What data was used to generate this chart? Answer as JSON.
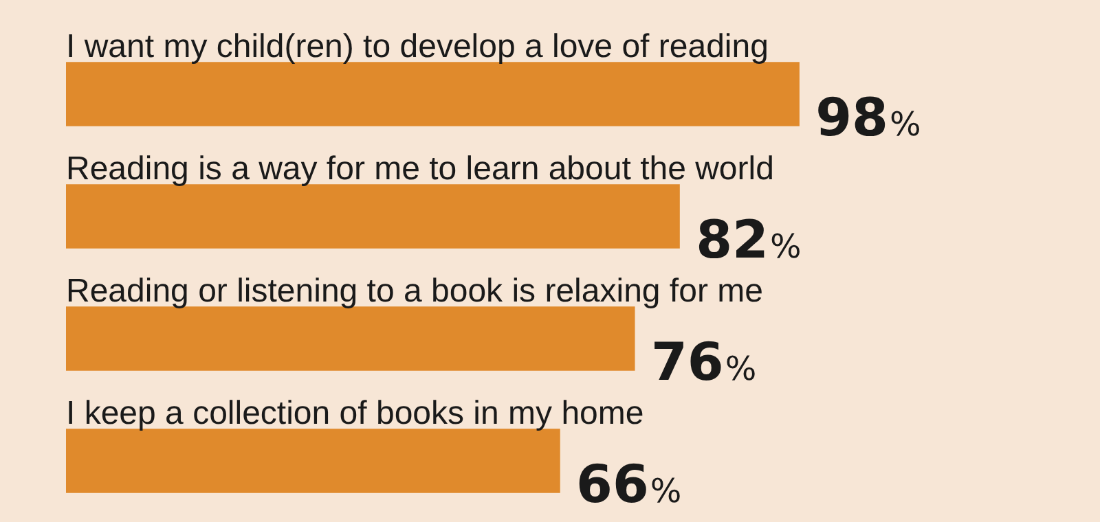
{
  "chart_data": {
    "type": "bar",
    "orientation": "horizontal",
    "categories": [
      "I want my child(ren) to develop a love of reading",
      "Reading is a way for me to learn about the world",
      "Reading or listening to a book is relaxing for me",
      "I keep a collection of books in my home"
    ],
    "values": [
      98,
      82,
      76,
      66
    ],
    "color": "#e08a2c",
    "value_labels": [
      "98%",
      "82%",
      "76%",
      "66%"
    ],
    "legend": false
  }
}
